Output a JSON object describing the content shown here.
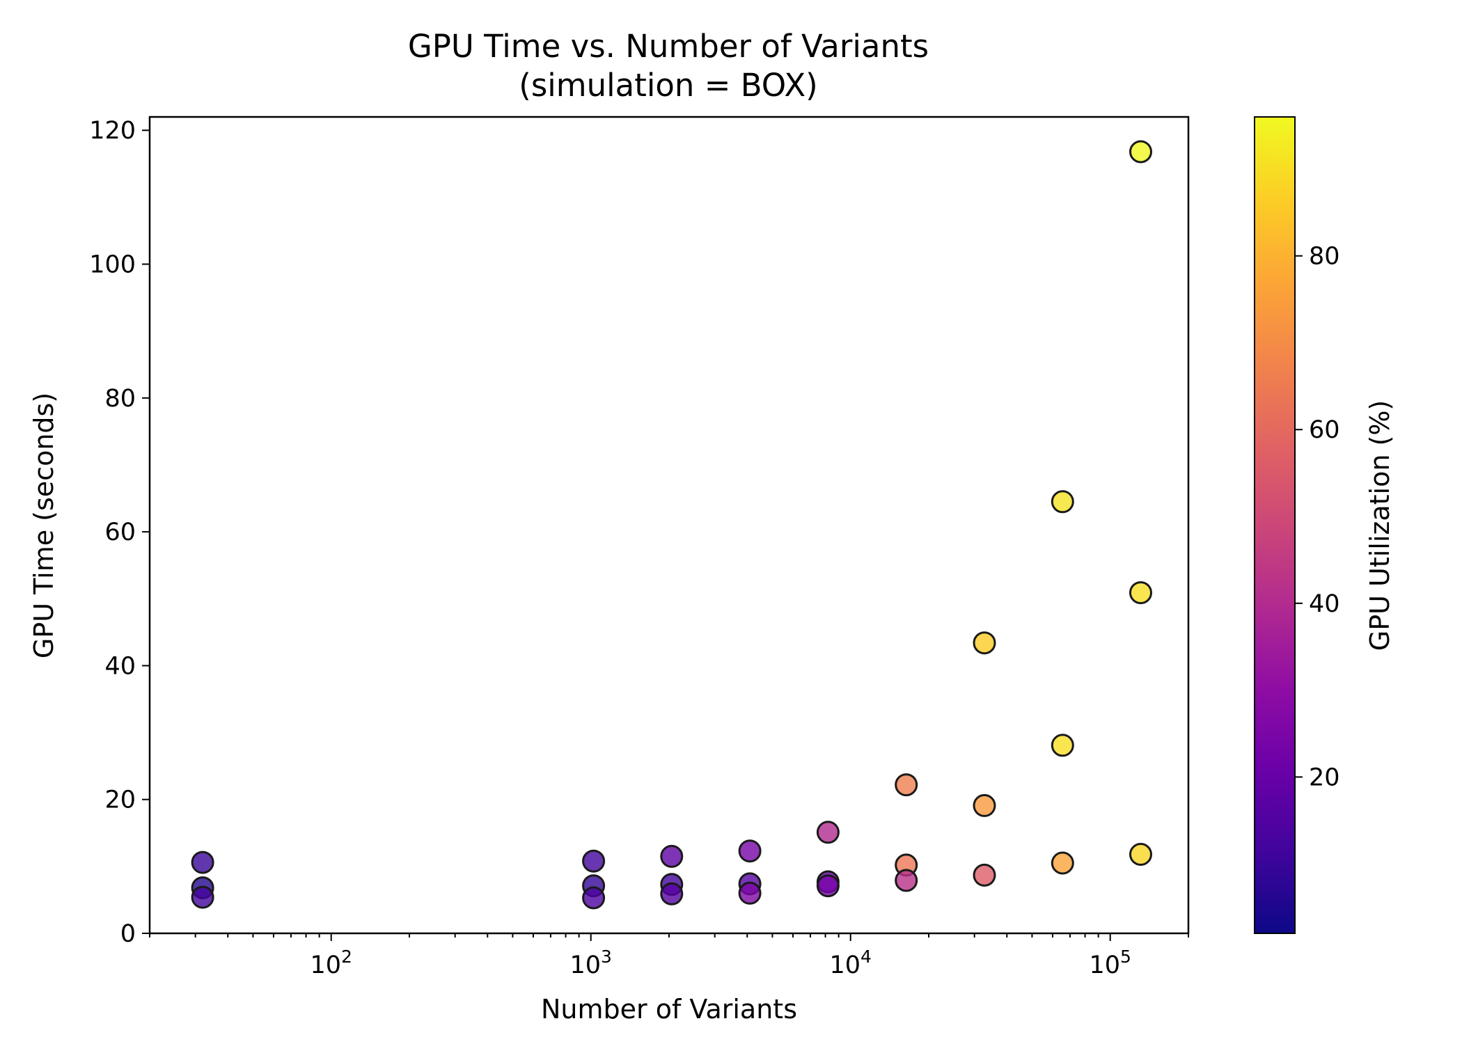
{
  "chart_data": {
    "type": "scatter",
    "title_lines": [
      "GPU Time vs. Number of Variants",
      "(simulation = BOX)"
    ],
    "xlabel": "Number of Variants",
    "ylabel": "GPU Time (seconds)",
    "x_scale": "log",
    "xlim": [
      20,
      200000
    ],
    "ylim": [
      0,
      122
    ],
    "grid": false,
    "x_ticks": [
      {
        "value": 100,
        "base": "10",
        "exp": "2"
      },
      {
        "value": 1000,
        "base": "10",
        "exp": "3"
      },
      {
        "value": 10000,
        "base": "10",
        "exp": "4"
      },
      {
        "value": 100000,
        "base": "10",
        "exp": "5"
      }
    ],
    "y_ticks": [
      0,
      20,
      40,
      60,
      80,
      100,
      120
    ],
    "colorbar": {
      "label": "GPU Utilization (%)",
      "colormap": "plasma",
      "range": [
        2,
        96
      ],
      "ticks": [
        20,
        40,
        60,
        80
      ]
    },
    "points": [
      {
        "x": 32,
        "y": 10.6,
        "util": 10
      },
      {
        "x": 32,
        "y": 6.8,
        "util": 6
      },
      {
        "x": 32,
        "y": 5.4,
        "util": 12
      },
      {
        "x": 1024,
        "y": 10.8,
        "util": 12
      },
      {
        "x": 1024,
        "y": 7.1,
        "util": 9
      },
      {
        "x": 1024,
        "y": 5.3,
        "util": 14
      },
      {
        "x": 2048,
        "y": 11.5,
        "util": 18
      },
      {
        "x": 2048,
        "y": 7.3,
        "util": 12
      },
      {
        "x": 2048,
        "y": 5.9,
        "util": 16
      },
      {
        "x": 4096,
        "y": 12.3,
        "util": 24
      },
      {
        "x": 4096,
        "y": 7.4,
        "util": 16
      },
      {
        "x": 4096,
        "y": 6.0,
        "util": 26
      },
      {
        "x": 8192,
        "y": 15.1,
        "util": 40
      },
      {
        "x": 8192,
        "y": 7.7,
        "util": 20
      },
      {
        "x": 8192,
        "y": 7.1,
        "util": 24
      },
      {
        "x": 16384,
        "y": 22.2,
        "util": 66
      },
      {
        "x": 16384,
        "y": 10.2,
        "util": 64
      },
      {
        "x": 16384,
        "y": 7.9,
        "util": 42
      },
      {
        "x": 32768,
        "y": 43.4,
        "util": 86
      },
      {
        "x": 32768,
        "y": 19.1,
        "util": 74
      },
      {
        "x": 32768,
        "y": 8.7,
        "util": 56
      },
      {
        "x": 65536,
        "y": 64.5,
        "util": 91
      },
      {
        "x": 65536,
        "y": 28.1,
        "util": 90
      },
      {
        "x": 65536,
        "y": 10.5,
        "util": 76
      },
      {
        "x": 131072,
        "y": 116.8,
        "util": 96
      },
      {
        "x": 131072,
        "y": 50.9,
        "util": 90
      },
      {
        "x": 131072,
        "y": 11.8,
        "util": 88
      }
    ]
  }
}
